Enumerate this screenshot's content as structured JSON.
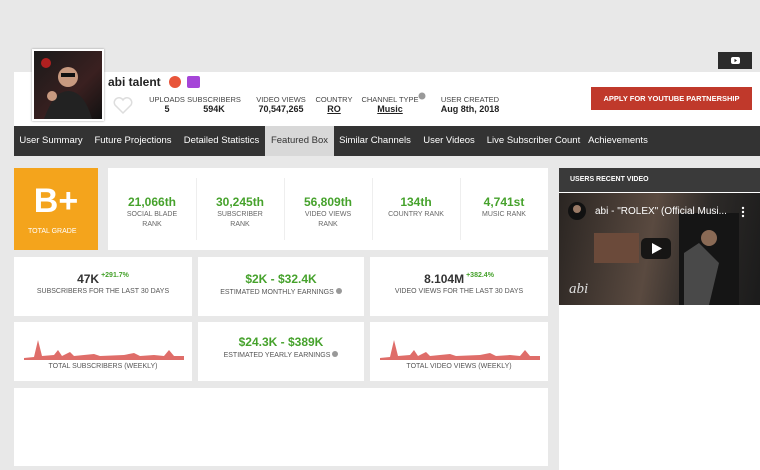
{
  "header": {
    "name": "abi talent",
    "stats": [
      {
        "label": "UPLOADS",
        "value": "5"
      },
      {
        "label": "SUBSCRIBERS",
        "value": "594K"
      },
      {
        "label": "VIDEO VIEWS",
        "value": "70,547,265"
      },
      {
        "label": "COUNTRY",
        "value": "RO"
      },
      {
        "label": "CHANNEL TYPE",
        "value": "Music"
      },
      {
        "label": "USER CREATED",
        "value": "Aug 8th, 2018"
      }
    ],
    "partnership_button": "APPLY FOR YOUTUBE PARTNERSHIP"
  },
  "nav": [
    "User Summary",
    "Future Projections",
    "Detailed Statistics",
    "Featured Box",
    "Similar Channels",
    "User Videos",
    "Live Subscriber Count",
    "Achievements"
  ],
  "grade": {
    "value": "B+",
    "label": "TOTAL GRADE"
  },
  "ranks": [
    {
      "value": "21,066th",
      "label": "SOCIAL BLADE RANK"
    },
    {
      "value": "30,245th",
      "label": "SUBSCRIBER RANK"
    },
    {
      "value": "56,809th",
      "label": "VIDEO VIEWS RANK"
    },
    {
      "value": "134th",
      "label": "COUNTRY RANK"
    },
    {
      "value": "4,741st",
      "label": "MUSIC RANK"
    }
  ],
  "cards": [
    {
      "value": "47K",
      "change": "+291.7%",
      "label": "SUBSCRIBERS FOR THE LAST 30 DAYS"
    },
    {
      "value": "$2K - $32.4K",
      "label": "ESTIMATED MONTHLY EARNINGS"
    },
    {
      "value": "8.104M",
      "change": "+382.4%",
      "label": "VIDEO VIEWS FOR THE LAST 30 DAYS"
    },
    {
      "label": "TOTAL SUBSCRIBERS (WEEKLY)"
    },
    {
      "value": "$24.3K - $389K",
      "label": "ESTIMATED YEARLY EARNINGS"
    },
    {
      "label": "TOTAL VIDEO VIEWS (WEEKLY)"
    }
  ],
  "recent_video": {
    "heading": "USERS RECENT VIDEO",
    "title": "abi - \"ROLEX\" (Official Musi...",
    "watermark": "abi"
  }
}
